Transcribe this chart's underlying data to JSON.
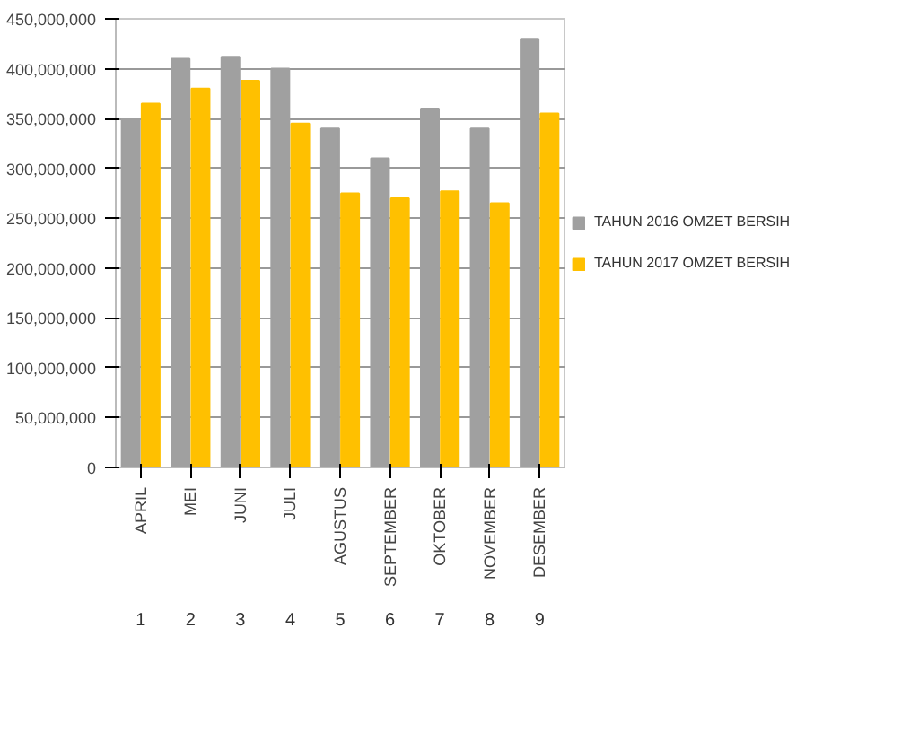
{
  "chart_data": {
    "type": "bar",
    "categories": [
      "APRIL",
      "MEI",
      "JUNI",
      "JULI",
      "AGUSTUS",
      "SEPTEMBER",
      "OKTOBER",
      "NOVEMBER",
      "DESEMBER"
    ],
    "series": [
      {
        "name": "TAHUN 2016 OMZET BERSIH",
        "color": "#a0a0a0",
        "values": [
          350000000,
          410000000,
          412000000,
          400000000,
          340000000,
          310000000,
          360000000,
          340000000,
          430000000
        ]
      },
      {
        "name": "TAHUN 2017 OMZET BERSIH",
        "color": "#ffc000",
        "values": [
          365000000,
          380000000,
          388000000,
          345000000,
          275000000,
          270000000,
          277000000,
          265000000,
          355000000
        ]
      }
    ],
    "ylim": [
      0,
      450000000
    ],
    "yticks": [
      {
        "value": 0,
        "label": "0"
      },
      {
        "value": 50000000,
        "label": "50,000,000"
      },
      {
        "value": 100000000,
        "label": "100,000,000"
      },
      {
        "value": 150000000,
        "label": "150,000,000"
      },
      {
        "value": 200000000,
        "label": "200,000,000"
      },
      {
        "value": 250000000,
        "label": "250,000,000"
      },
      {
        "value": 300000000,
        "label": "300,000,000"
      },
      {
        "value": 350000000,
        "label": "350,000,000"
      },
      {
        "value": 400000000,
        "label": "400,000,000"
      },
      {
        "value": 450000000,
        "label": "450,000,000"
      }
    ],
    "annotations": [
      "1",
      "2",
      "3",
      "4",
      "5",
      "6",
      "7",
      "8",
      "9"
    ],
    "grid": "y",
    "legend": "right"
  }
}
